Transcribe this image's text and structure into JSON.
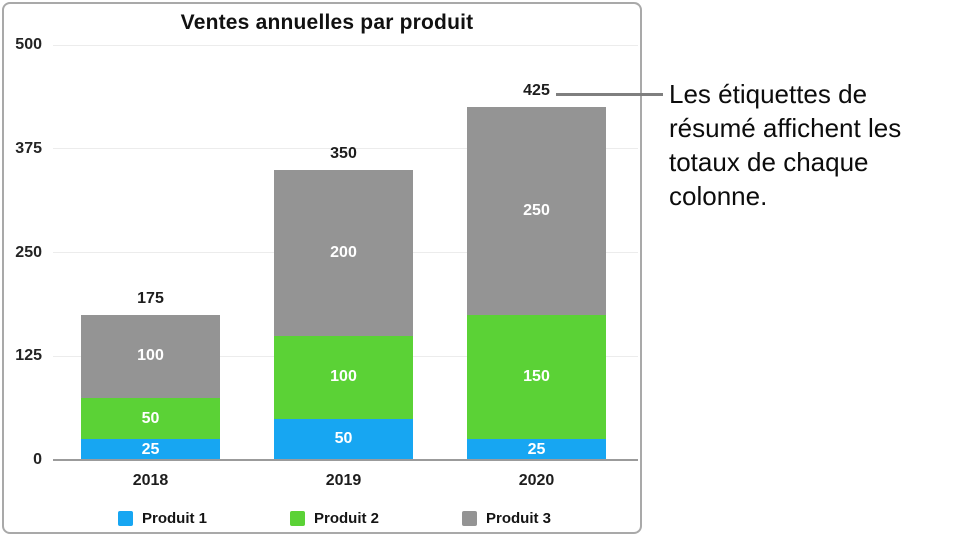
{
  "chart_data": {
    "type": "bar",
    "variant": "stacked",
    "title": "Ventes annuelles par produit",
    "categories": [
      "2018",
      "2019",
      "2020"
    ],
    "series": [
      {
        "name": "Produit 1",
        "color": "#17a6f2",
        "values": [
          25,
          50,
          25
        ]
      },
      {
        "name": "Produit 2",
        "color": "#5bd236",
        "values": [
          50,
          100,
          150
        ]
      },
      {
        "name": "Produit 3",
        "color": "#949494",
        "values": [
          100,
          200,
          250
        ]
      }
    ],
    "totals": [
      175,
      350,
      425
    ],
    "y_ticks": [
      0,
      125,
      250,
      375,
      500
    ],
    "ylim": [
      0,
      500
    ],
    "grid": true,
    "legend_position": "bottom",
    "value_labels": "inside-white",
    "summary_labels": "above-columns"
  },
  "callout": {
    "text": "Les étiquettes de résumé affichent les totaux de chaque colonne.",
    "lines": [
      "Les étiquettes de",
      "résumé affichent les",
      "totaux de chaque",
      "colonne."
    ]
  }
}
